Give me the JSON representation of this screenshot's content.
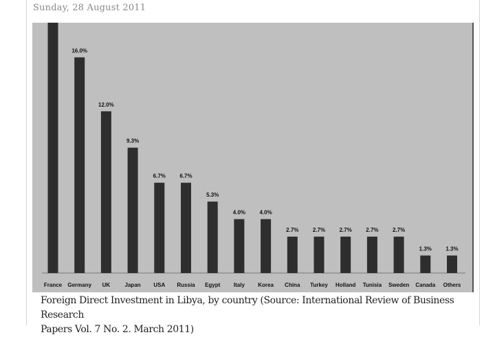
{
  "post": {
    "date": "Sunday, 28 August 2011",
    "caption_line1": "Foreign Direct Investment in Libya, by country (Source: International Review of Business Research",
    "caption_line2": "Papers Vol. 7 No. 2. March 2011)"
  },
  "chart_data": {
    "type": "bar",
    "title": "",
    "xlabel": "",
    "ylabel": "",
    "categories": [
      "France",
      "Germany",
      "UK",
      "Japan",
      "USA",
      "Russia",
      "Egypt",
      "Italy",
      "Korea",
      "China",
      "Turkey",
      "Holland",
      "Tunisia",
      "Sweden",
      "Canada",
      "Others"
    ],
    "values": [
      null,
      16.0,
      12.0,
      9.3,
      6.7,
      6.7,
      5.3,
      4.0,
      4.0,
      2.7,
      2.7,
      2.7,
      2.7,
      2.7,
      1.3,
      1.3
    ],
    "data_labels": [
      "",
      "16.0%",
      "12.0%",
      "9.3%",
      "6.7%",
      "6.7%",
      "5.3%",
      "4.0%",
      "4.0%",
      "2.7%",
      "2.7%",
      "2.7%",
      "2.7%",
      "2.7%",
      "1.3%",
      "1.3%"
    ],
    "note_france": "France bar extends beyond the top of the cropped chart; its label is not visible",
    "grid": false,
    "colors": {
      "background": "#bfbfbf",
      "bar": "#2e2e2e",
      "border": "#555555"
    }
  }
}
